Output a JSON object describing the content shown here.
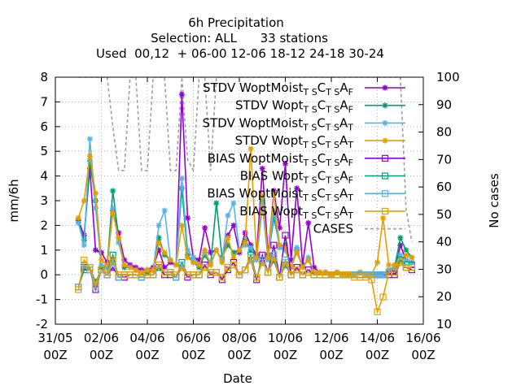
{
  "title_lines": [
    "6h Precipitation",
    "Selection: ALL      33 stations",
    "Used  00,12  + 06-00 12-06 18-12 24-18 30-24"
  ],
  "chart_data": {
    "type": "line",
    "xlabel": "Date",
    "ylabel": "mm/6h",
    "y2label": "No cases",
    "xlim": [
      0,
      16
    ],
    "ylim": [
      -2,
      8
    ],
    "y2lim": [
      10,
      100
    ],
    "x_ticks": [
      {
        "x": 0,
        "line1": "31/05",
        "line2": "00Z"
      },
      {
        "x": 2,
        "line1": "02/06",
        "line2": "00Z"
      },
      {
        "x": 4,
        "line1": "04/06",
        "line2": "00Z"
      },
      {
        "x": 6,
        "line1": "06/06",
        "line2": "00Z"
      },
      {
        "x": 8,
        "line1": "08/06",
        "line2": "00Z"
      },
      {
        "x": 10,
        "line1": "10/06",
        "line2": "00Z"
      },
      {
        "x": 12,
        "line1": "12/06",
        "line2": "00Z"
      },
      {
        "x": 14,
        "line1": "14/06",
        "line2": "00Z"
      },
      {
        "x": 16,
        "line1": "16/06",
        "line2": "00Z"
      }
    ],
    "y_ticks": [
      -2,
      -1,
      0,
      1,
      2,
      3,
      4,
      5,
      6,
      7,
      8
    ],
    "y2_ticks": [
      10,
      20,
      30,
      40,
      50,
      60,
      70,
      80,
      90,
      100
    ],
    "grid": true,
    "legend_position": "top-right",
    "x": [
      1.0,
      1.25,
      1.5,
      1.75,
      2.0,
      2.25,
      2.5,
      2.75,
      3.0,
      3.25,
      3.5,
      3.75,
      4.0,
      4.25,
      4.5,
      4.75,
      5.0,
      5.25,
      5.5,
      5.75,
      6.0,
      6.25,
      6.5,
      6.75,
      7.0,
      7.25,
      7.5,
      7.75,
      8.0,
      8.25,
      8.5,
      8.75,
      9.0,
      9.25,
      9.5,
      9.75,
      10.0,
      10.25,
      10.5,
      10.75,
      11.0,
      11.25,
      11.5,
      11.75,
      12.0,
      12.25,
      12.5,
      12.75,
      13.0,
      13.25,
      13.5,
      13.75,
      14.0,
      14.25,
      14.5,
      14.75,
      15.0,
      15.25,
      15.5
    ],
    "series": [
      {
        "name": "STDV WoptMoist",
        "sub1": "T S",
        "mid1": "C",
        "sub2": "T S",
        "mid2": "A",
        "sub3": "F",
        "color": "#9400d3",
        "marker": "star",
        "axis": "y",
        "values": [
          2.2,
          1.6,
          4.3,
          1.0,
          0.9,
          0.5,
          2.6,
          1.7,
          0.6,
          0.4,
          0.3,
          0.2,
          0.2,
          0.3,
          1.0,
          0.3,
          0.5,
          0.4,
          7.3,
          2.3,
          0.7,
          0.6,
          1.9,
          0.9,
          1.0,
          0.6,
          1.6,
          2.0,
          0.9,
          1.7,
          1.2,
          0.8,
          4.3,
          0.8,
          3.4,
          1.9,
          4.5,
          0.6,
          3.5,
          0.4,
          2.1,
          0.3,
          0.1,
          0.1,
          0.0,
          0.1,
          0.0,
          0.0,
          0.0,
          0.1,
          0.0,
          0.0,
          0.0,
          0.0,
          0.1,
          0.1,
          1.2,
          0.6,
          0.5
        ]
      },
      {
        "name": "STDV Wopt",
        "sub1": "T S",
        "mid1": "C",
        "sub2": "T S",
        "mid2": "A",
        "sub3": "F",
        "color": "#009e73",
        "marker": "star",
        "axis": "y",
        "values": [
          2.1,
          1.4,
          4.6,
          3.0,
          0.3,
          0.3,
          3.4,
          1.5,
          0.3,
          0.3,
          0.2,
          0.1,
          0.1,
          0.2,
          1.5,
          0.8,
          0.6,
          0.4,
          3.5,
          0.8,
          0.5,
          0.3,
          0.8,
          0.4,
          2.9,
          0.7,
          1.2,
          0.9,
          1.0,
          1.4,
          1.0,
          0.7,
          3.0,
          0.7,
          2.3,
          1.2,
          1.2,
          0.3,
          1.0,
          0.3,
          0.6,
          0.1,
          0.1,
          0.1,
          0.0,
          0.1,
          0.0,
          0.0,
          0.0,
          0.1,
          0.0,
          0.0,
          0.0,
          0.0,
          0.2,
          0.3,
          1.5,
          1.0,
          0.7
        ]
      },
      {
        "name": "STDV WoptMoist",
        "sub1": "T S",
        "mid1": "C",
        "sub2": "T S",
        "mid2": "A",
        "sub3": "T",
        "color": "#56b4e9",
        "marker": "star",
        "axis": "y",
        "values": [
          2.1,
          1.2,
          5.5,
          2.7,
          0.4,
          0.3,
          2.7,
          1.3,
          0.4,
          0.3,
          0.2,
          0.1,
          0.2,
          0.2,
          2.0,
          2.6,
          0.6,
          0.4,
          3.9,
          1.0,
          0.7,
          0.4,
          0.9,
          0.5,
          1.0,
          0.6,
          2.4,
          2.9,
          1.0,
          1.2,
          1.1,
          0.6,
          2.8,
          0.6,
          2.6,
          1.1,
          1.0,
          0.3,
          1.1,
          0.3,
          0.7,
          0.1,
          0.1,
          0.1,
          0.0,
          0.1,
          0.0,
          0.0,
          0.0,
          0.1,
          0.0,
          0.0,
          0.0,
          0.0,
          0.2,
          0.3,
          0.8,
          0.6,
          0.5
        ]
      },
      {
        "name": "STDV Wopt",
        "sub1": "T S",
        "mid1": "C",
        "sub2": "T S",
        "mid2": "A",
        "sub3": "T",
        "color": "#e69f00",
        "marker": "star",
        "axis": "y",
        "values": [
          2.3,
          3.0,
          4.8,
          3.3,
          0.6,
          0.4,
          2.5,
          1.5,
          0.4,
          0.3,
          0.2,
          0.1,
          0.2,
          0.2,
          1.3,
          0.9,
          0.6,
          0.4,
          2.0,
          0.7,
          0.5,
          0.4,
          1.0,
          0.4,
          1.0,
          0.5,
          1.5,
          0.7,
          1.0,
          1.3,
          5.1,
          0.7,
          3.2,
          0.7,
          3.3,
          1.2,
          1.1,
          0.3,
          0.9,
          0.3,
          0.6,
          0.1,
          0.1,
          0.1,
          0.0,
          0.1,
          0.0,
          0.0,
          0.0,
          0.1,
          0.0,
          0.0,
          0.5,
          2.3,
          0.4,
          0.4,
          0.6,
          0.8,
          0.7
        ]
      },
      {
        "name": "BIAS WoptMoist",
        "sub1": "T S",
        "mid1": "C",
        "sub2": "T S",
        "mid2": "A",
        "sub3": "F",
        "color": "#9400d3",
        "marker": "square",
        "axis": "y",
        "values": [
          -0.5,
          0.3,
          0.2,
          -0.6,
          0.2,
          0.0,
          0.3,
          -0.1,
          -0.1,
          0.0,
          0.0,
          -0.1,
          0.0,
          0.0,
          0.3,
          0.0,
          0.0,
          -0.1,
          0.3,
          -0.1,
          0.0,
          0.0,
          0.4,
          0.0,
          0.1,
          -0.2,
          0.2,
          0.5,
          0.0,
          0.2,
          0.6,
          -0.2,
          0.8,
          0.1,
          1.2,
          -0.1,
          1.6,
          0.0,
          0.3,
          0.0,
          0.2,
          0.0,
          0.0,
          0.0,
          0.0,
          0.0,
          0.0,
          0.0,
          0.0,
          0.0,
          0.0,
          0.0,
          0.0,
          0.0,
          0.0,
          0.0,
          0.5,
          0.3,
          0.2
        ]
      },
      {
        "name": "BIAS Wopt",
        "sub1": "T S",
        "mid1": "C",
        "sub2": "T S",
        "mid2": "A",
        "sub3": "F",
        "color": "#009e73",
        "marker": "square",
        "axis": "y",
        "values": [
          -0.5,
          0.2,
          0.3,
          -0.3,
          0.2,
          0.1,
          0.8,
          -0.1,
          0.0,
          0.0,
          0.0,
          -0.1,
          0.0,
          0.0,
          0.3,
          0.1,
          0.1,
          -0.1,
          0.5,
          0.0,
          0.0,
          0.0,
          0.3,
          0.1,
          0.1,
          -0.1,
          0.3,
          0.4,
          0.0,
          0.2,
          0.8,
          -0.1,
          0.5,
          0.1,
          0.6,
          -0.1,
          0.4,
          0.0,
          0.2,
          0.0,
          0.1,
          0.0,
          0.0,
          0.0,
          0.0,
          0.0,
          0.0,
          0.0,
          0.0,
          0.0,
          0.0,
          0.0,
          0.0,
          0.0,
          0.1,
          0.1,
          0.6,
          0.4,
          0.4
        ]
      },
      {
        "name": "BIAS WoptMoist",
        "sub1": "T S",
        "mid1": "C",
        "sub2": "T S",
        "mid2": "A",
        "sub3": "T",
        "color": "#56b4e9",
        "marker": "square",
        "axis": "y",
        "values": [
          -0.5,
          0.4,
          0.2,
          -0.5,
          0.2,
          0.0,
          0.5,
          -0.1,
          0.0,
          0.0,
          0.0,
          -0.1,
          0.0,
          0.0,
          0.4,
          0.1,
          0.1,
          -0.1,
          0.4,
          0.0,
          0.0,
          0.0,
          0.3,
          0.1,
          0.1,
          -0.1,
          0.3,
          0.4,
          0.0,
          0.2,
          0.7,
          -0.1,
          0.6,
          0.1,
          0.8,
          -0.1,
          0.6,
          0.0,
          0.2,
          0.0,
          0.1,
          0.0,
          0.0,
          0.0,
          0.0,
          0.0,
          0.0,
          0.0,
          0.0,
          0.0,
          0.0,
          0.0,
          0.0,
          0.0,
          0.1,
          0.1,
          0.5,
          0.3,
          0.3
        ]
      },
      {
        "name": "BIAS Wopt",
        "sub1": "T S",
        "mid1": "C",
        "sub2": "T S",
        "mid2": "A",
        "sub3": "T",
        "color": "#e69f00",
        "marker": "square",
        "axis": "y",
        "values": [
          -0.6,
          0.6,
          0.3,
          -0.4,
          0.2,
          0.1,
          0.6,
          0.0,
          0.0,
          0.0,
          0.0,
          0.0,
          0.0,
          0.0,
          0.4,
          0.1,
          0.1,
          0.0,
          0.3,
          0.0,
          0.0,
          0.0,
          0.3,
          0.1,
          0.1,
          -0.1,
          0.3,
          0.4,
          0.0,
          0.2,
          0.6,
          -0.1,
          0.5,
          0.1,
          0.7,
          -0.1,
          0.5,
          0.0,
          0.2,
          0.0,
          0.1,
          0.0,
          0.0,
          0.0,
          0.0,
          0.0,
          0.0,
          0.0,
          -0.1,
          -0.1,
          -0.1,
          -0.2,
          -1.5,
          -0.9,
          0.1,
          0.1,
          0.5,
          0.3,
          0.3
        ]
      }
    ],
    "cases": {
      "name": "CASES",
      "color": "#a0a0a0",
      "axis": "y2",
      "x": [
        1.0,
        1.5,
        2.0,
        2.25,
        2.5,
        2.75,
        3.0,
        3.25,
        3.5,
        3.75,
        4.0,
        4.25,
        4.5,
        4.75,
        5.0,
        5.25,
        5.5,
        5.75,
        6.0,
        6.25,
        6.5,
        6.75,
        7.0,
        7.25,
        7.5,
        7.75,
        8.0,
        8.25,
        8.5,
        8.75,
        9.0,
        9.25,
        9.5,
        9.75,
        10.0,
        10.25,
        10.5,
        10.75,
        11.0,
        11.25,
        11.5,
        11.75,
        12.0,
        12.25,
        12.5,
        12.75,
        13.0,
        13.25,
        13.5,
        13.75,
        14.0,
        14.25,
        14.5,
        14.75,
        15.0,
        15.25,
        15.5
      ],
      "values": [
        100,
        100,
        100,
        100,
        82,
        66,
        66,
        100,
        100,
        66,
        66,
        100,
        100,
        100,
        66,
        66,
        100,
        70,
        66,
        100,
        100,
        66,
        100,
        100,
        100,
        100,
        100,
        100,
        100,
        100,
        100,
        100,
        100,
        100,
        100,
        100,
        100,
        100,
        100,
        100,
        100,
        100,
        100,
        100,
        100,
        100,
        100,
        100,
        100,
        100,
        100,
        100,
        100,
        100,
        100,
        52,
        40
      ]
    }
  }
}
